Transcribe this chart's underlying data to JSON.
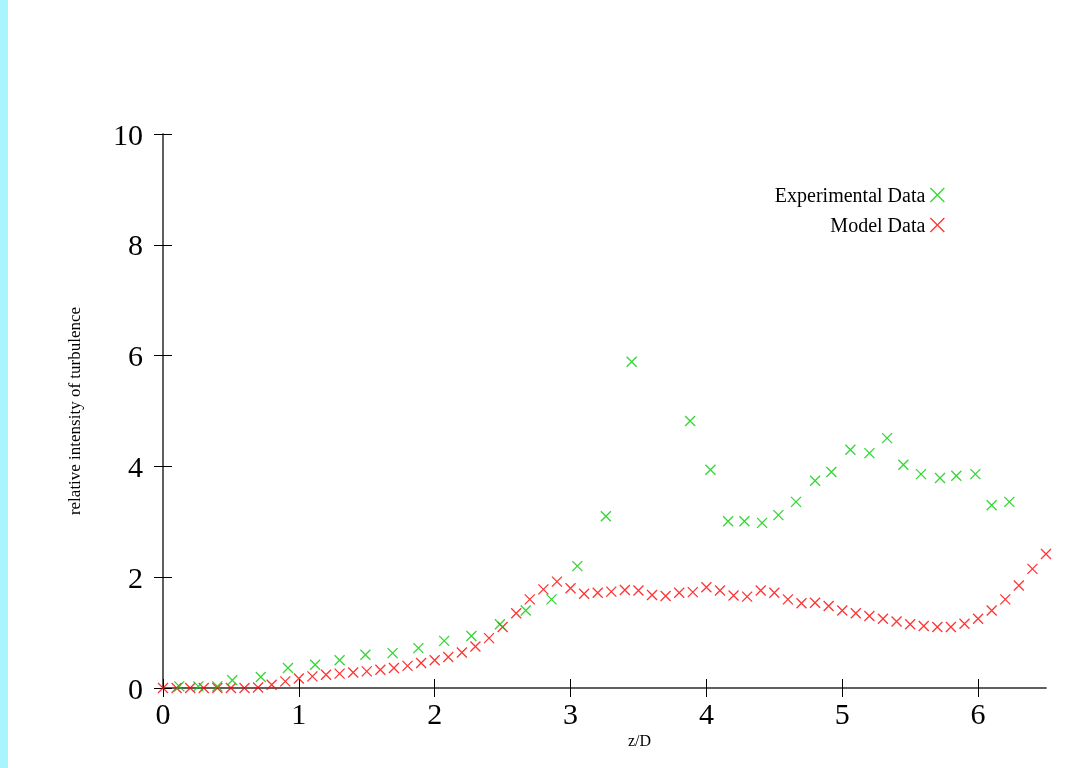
{
  "chart_data": {
    "type": "scatter",
    "xlabel": "z/D",
    "ylabel": "relative intensity of turbulence",
    "xlim": [
      0,
      6.5
    ],
    "xticks": [
      0,
      1,
      2,
      3,
      4,
      5,
      6
    ],
    "ylim": [
      0,
      10
    ],
    "yticks": [
      0,
      2,
      4,
      6,
      8,
      10
    ],
    "grid": false,
    "legend": "top right",
    "marker": "cross",
    "series": [
      {
        "name": "Experimental Data",
        "color": "#00cc00",
        "x": [
          0.12,
          0.26,
          0.4,
          0.51,
          0.72,
          0.92,
          1.12,
          1.3,
          1.49,
          1.69,
          1.88,
          2.07,
          2.27,
          2.48,
          2.67,
          2.86,
          3.05,
          3.26,
          3.45,
          3.88,
          4.03,
          4.16,
          4.28,
          4.41,
          4.53,
          4.66,
          4.8,
          4.92,
          5.06,
          5.2,
          5.33,
          5.45,
          5.58,
          5.72,
          5.84,
          5.98,
          6.1,
          6.23
        ],
        "values": [
          0.03,
          0.03,
          0.03,
          0.14,
          0.2,
          0.36,
          0.42,
          0.5,
          0.6,
          0.63,
          0.72,
          0.85,
          0.94,
          1.15,
          1.4,
          1.6,
          2.2,
          3.1,
          5.89,
          4.82,
          3.94,
          3.01,
          3.01,
          2.98,
          3.12,
          3.36,
          3.74,
          3.9,
          4.3,
          4.24,
          4.51,
          4.03,
          3.86,
          3.79,
          3.83,
          3.86,
          3.3,
          3.36
        ]
      },
      {
        "name": "Model Data",
        "color": "#ff0000",
        "x": [
          0,
          0.1,
          0.2,
          0.3,
          0.4,
          0.5,
          0.6,
          0.7,
          0.8,
          0.9,
          1.0,
          1.1,
          1.2,
          1.3,
          1.4,
          1.5,
          1.6,
          1.7,
          1.8,
          1.9,
          2.0,
          2.1,
          2.2,
          2.3,
          2.4,
          2.5,
          2.6,
          2.7,
          2.8,
          2.9,
          3.0,
          3.1,
          3.2,
          3.3,
          3.4,
          3.5,
          3.6,
          3.7,
          3.8,
          3.9,
          4.0,
          4.1,
          4.2,
          4.3,
          4.4,
          4.5,
          4.6,
          4.7,
          4.8,
          4.9,
          5.0,
          5.1,
          5.2,
          5.3,
          5.4,
          5.5,
          5.6,
          5.7,
          5.8,
          5.9,
          6.0,
          6.1,
          6.2,
          6.3,
          6.4,
          6.5
        ],
        "values": [
          0,
          0,
          0,
          0,
          0,
          0,
          0,
          0.01,
          0.06,
          0.12,
          0.17,
          0.21,
          0.24,
          0.26,
          0.28,
          0.3,
          0.33,
          0.36,
          0.4,
          0.45,
          0.5,
          0.56,
          0.64,
          0.75,
          0.9,
          1.1,
          1.35,
          1.6,
          1.78,
          1.92,
          1.8,
          1.7,
          1.72,
          1.74,
          1.77,
          1.76,
          1.68,
          1.66,
          1.72,
          1.73,
          1.82,
          1.76,
          1.67,
          1.65,
          1.76,
          1.72,
          1.6,
          1.53,
          1.54,
          1.48,
          1.4,
          1.35,
          1.3,
          1.25,
          1.2,
          1.15,
          1.12,
          1.1,
          1.1,
          1.16,
          1.25,
          1.4,
          1.6,
          1.85,
          2.15,
          2.42
        ]
      }
    ]
  }
}
